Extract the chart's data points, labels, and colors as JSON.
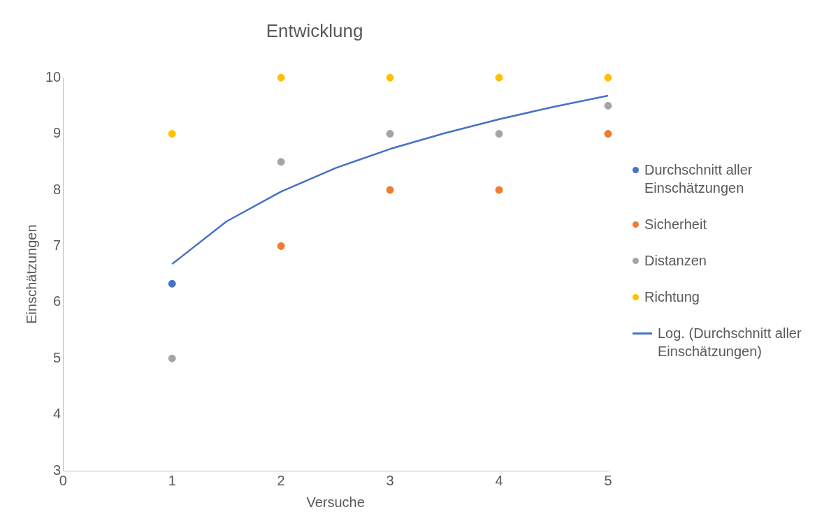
{
  "chart_data": {
    "type": "scatter",
    "title": "Entwicklung",
    "xlabel": "Versuche",
    "ylabel": "Einschätzungen",
    "x": [
      1,
      2,
      3,
      4,
      5
    ],
    "series": [
      {
        "name": "Durchschnitt aller Einschätzungen",
        "color": "#4472c4",
        "values": [
          6.33,
          null,
          null,
          null,
          null
        ]
      },
      {
        "name": "Sicherheit",
        "color": "#ed7d31",
        "values": [
          null,
          7,
          8,
          8,
          9
        ]
      },
      {
        "name": "Distanzen",
        "color": "#a5a5a5",
        "values": [
          5,
          8.5,
          9,
          9,
          9.5
        ]
      },
      {
        "name": "Richtung",
        "color": "#ffc000",
        "values": [
          9,
          10,
          10,
          10,
          10
        ]
      },
      {
        "name": "Log. (Durchschnitt aller Einschätzungen)",
        "type": "line",
        "marker": "none",
        "color": "#4472c4",
        "line_style": "solid",
        "x": [
          1,
          1.5,
          2,
          2.5,
          3,
          3.5,
          4,
          4.5,
          5
        ],
        "values": [
          6.68,
          7.44,
          7.97,
          8.39,
          8.73,
          9.01,
          9.26,
          9.48,
          9.68
        ]
      }
    ],
    "xlim": [
      0,
      5
    ],
    "xticks": [
      0,
      1,
      2,
      3,
      4,
      5
    ],
    "ylim": [
      3,
      10
    ],
    "yticks": [
      3,
      4,
      5,
      6,
      7,
      8,
      9,
      10
    ],
    "grid": false,
    "legend": "right",
    "marker": "circle"
  }
}
